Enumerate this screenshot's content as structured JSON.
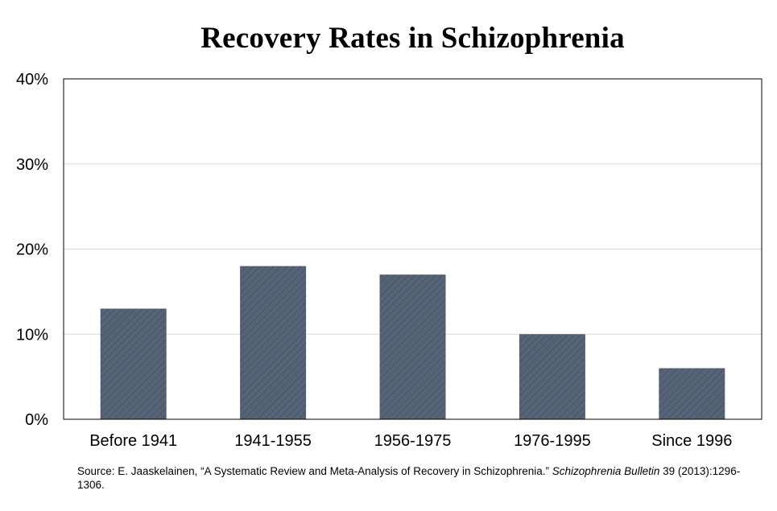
{
  "title": "Recovery Rates in Schizophrenia",
  "source": {
    "prefix": "Source:  E. Jaaskelainen, “A Systematic Review and Meta-Analysis of Recovery in Schizophrenia.”  ",
    "journal": "Schizophrenia Bulletin",
    "suffix": " 39 (2013):1296-1306."
  },
  "colors": {
    "bar": "#566275",
    "bar_texture": "#4a5567",
    "grid": "#d9d9d9",
    "axis": "#000000"
  },
  "chart_data": {
    "type": "bar",
    "title": "Recovery Rates in Schizophrenia",
    "xlabel": "",
    "ylabel": "",
    "categories": [
      "Before 1941",
      "1941-1955",
      "1956-1975",
      "1976-1995",
      "Since 1996"
    ],
    "values": [
      13,
      18,
      17,
      10,
      6
    ],
    "unit": "%",
    "ylim": [
      0,
      40
    ],
    "yticks": [
      0,
      10,
      20,
      30,
      40
    ],
    "ytick_labels": [
      "0%",
      "10%",
      "20%",
      "30%",
      "40%"
    ],
    "grid": true,
    "legend": "none"
  }
}
